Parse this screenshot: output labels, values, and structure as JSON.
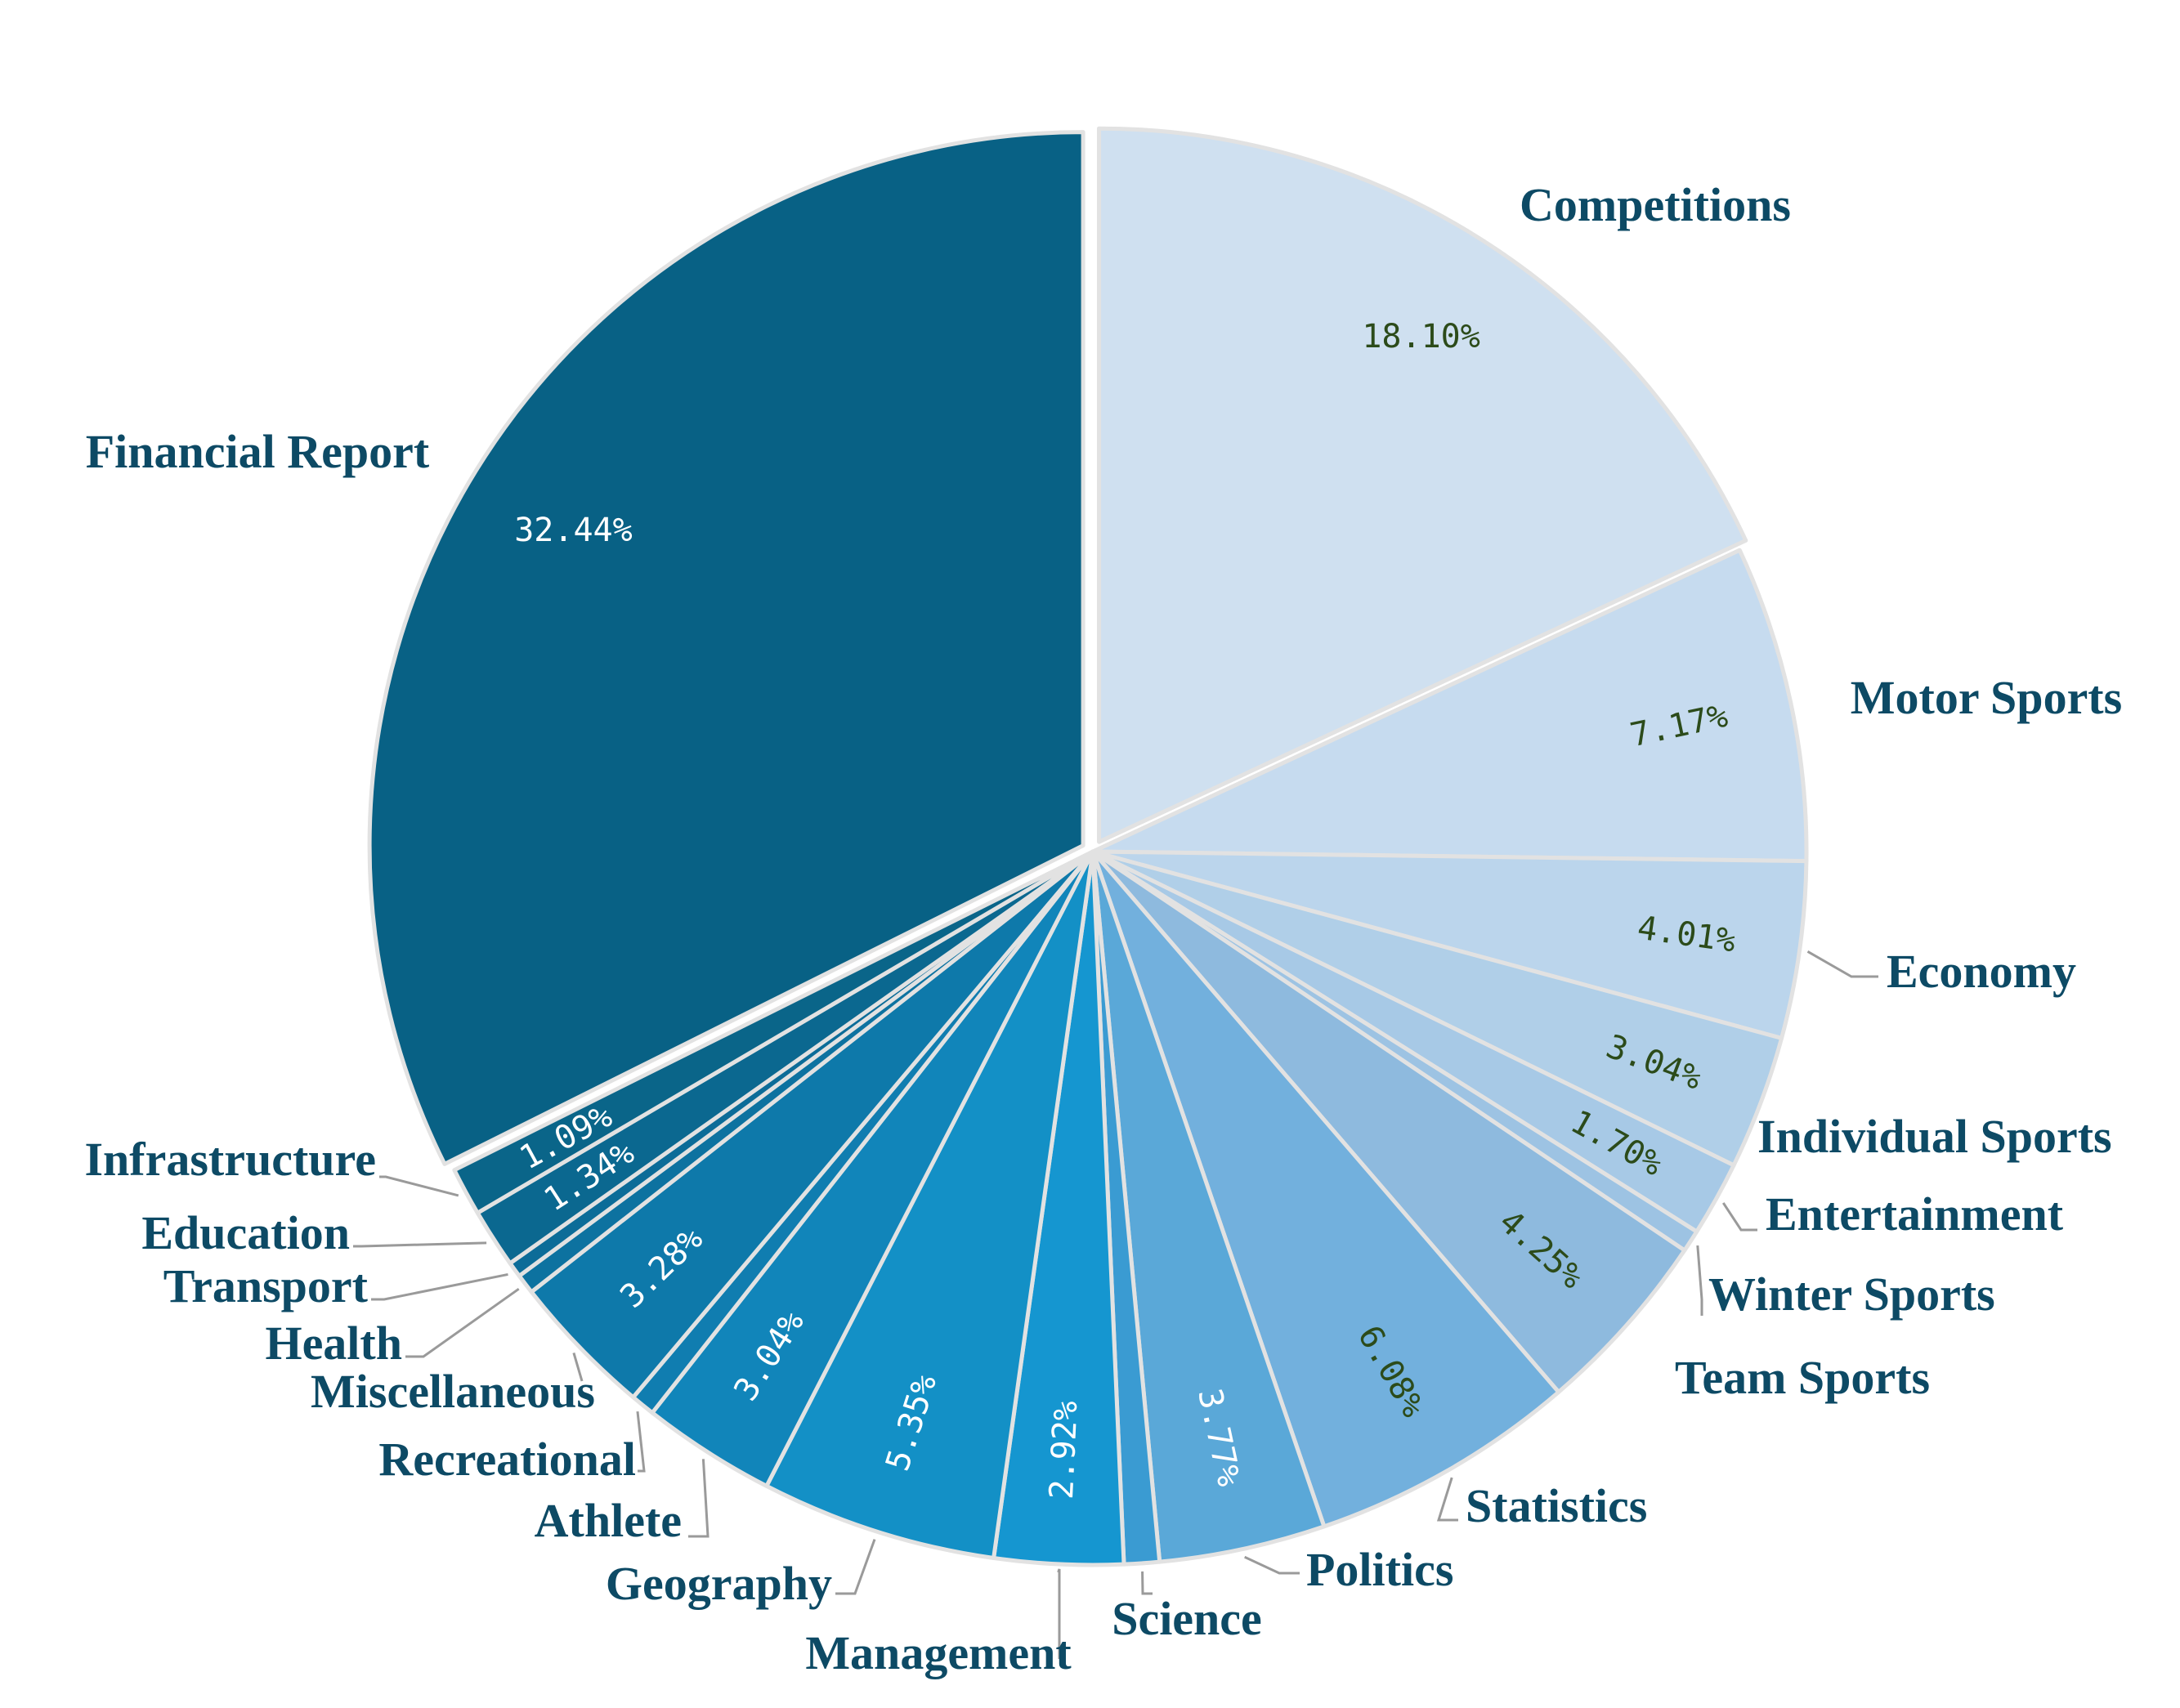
{
  "chart_data": {
    "type": "pie",
    "title": "",
    "start_angle_deg": -90,
    "direction": "clockwise",
    "colors": {
      "category_label": "#0d4a65",
      "leader_line": "#9a9a9a",
      "slice_border": "#e2e2e2",
      "pct_dark": "#2c4b1a",
      "pct_light": "#ffffff"
    },
    "slices": [
      {
        "label": "Competitions",
        "value": 18.1,
        "value_label": "18.10%",
        "color": "#cfe0f0",
        "pct_color": "dark",
        "exploded": true,
        "leader": false
      },
      {
        "label": "Motor Sports",
        "value": 7.17,
        "value_label": "7.17%",
        "color": "#c6dbef",
        "pct_color": "dark",
        "exploded": false,
        "leader": false
      },
      {
        "label": "Economy",
        "value": 4.01,
        "value_label": "4.01%",
        "color": "#bbd5ec",
        "pct_color": "dark",
        "exploded": false,
        "leader": true
      },
      {
        "label": "Individual Sports",
        "value": 3.04,
        "value_label": "3.04%",
        "color": "#b0cfe8",
        "pct_color": "dark",
        "exploded": false,
        "leader": false
      },
      {
        "label": "Entertainment",
        "value": 1.7,
        "value_label": "1.70%",
        "color": "#a7c9e6",
        "pct_color": "dark",
        "exploded": false,
        "leader": true
      },
      {
        "label": "Winter Sports",
        "value": 0.5,
        "value_label": "",
        "color": "#9dc3e3",
        "pct_color": "dark",
        "exploded": false,
        "leader": true
      },
      {
        "label": "Team Sports",
        "value": 4.25,
        "value_label": "4.25%",
        "color": "#8ebade",
        "pct_color": "dark",
        "exploded": false,
        "leader": false
      },
      {
        "label": "Statistics",
        "value": 6.08,
        "value_label": "6.08%",
        "color": "#72b0dd",
        "pct_color": "dark",
        "exploded": false,
        "leader": true
      },
      {
        "label": "Politics",
        "value": 3.77,
        "value_label": "3.77%",
        "color": "#5aa8d8",
        "pct_color": "light",
        "exploded": false,
        "leader": true
      },
      {
        "label": "Science",
        "value": 0.8,
        "value_label": "",
        "color": "#3a9bd2",
        "pct_color": "light",
        "exploded": false,
        "leader": true
      },
      {
        "label": "Management",
        "value": 2.92,
        "value_label": "2.92%",
        "color": "#1596d0",
        "pct_color": "light",
        "exploded": false,
        "leader": true
      },
      {
        "label": "Geography",
        "value": 5.35,
        "value_label": "5.35%",
        "color": "#1390c6",
        "pct_color": "light",
        "exploded": false,
        "leader": true
      },
      {
        "label": "Athlete",
        "value": 3.04,
        "value_label": "3.04%",
        "color": "#1185ba",
        "pct_color": "light",
        "exploded": false,
        "leader": true
      },
      {
        "label": "Recreational",
        "value": 0.55,
        "value_label": "",
        "color": "#107db0",
        "pct_color": "light",
        "exploded": false,
        "leader": true
      },
      {
        "label": "Miscellaneous",
        "value": 3.28,
        "value_label": "3.28%",
        "color": "#0e79aa",
        "pct_color": "light",
        "exploded": false,
        "leader": true
      },
      {
        "label": "Health",
        "value": 0.45,
        "value_label": "",
        "color": "#0d72a0",
        "pct_color": "light",
        "exploded": false,
        "leader": true
      },
      {
        "label": "Transport",
        "value": 0.35,
        "value_label": "",
        "color": "#0c6c98",
        "pct_color": "light",
        "exploded": false,
        "leader": true
      },
      {
        "label": "Education",
        "value": 1.34,
        "value_label": "1.34%",
        "color": "#0b6890",
        "pct_color": "light",
        "exploded": false,
        "leader": true
      },
      {
        "label": "Infrastructure",
        "value": 1.09,
        "value_label": "1.09%",
        "color": "#0a6589",
        "pct_color": "light",
        "exploded": false,
        "leader": true
      },
      {
        "label": "Financial Report",
        "value": 32.44,
        "value_label": "32.44%",
        "color": "#086185",
        "pct_color": "light",
        "exploded": true,
        "leader": false
      }
    ]
  }
}
